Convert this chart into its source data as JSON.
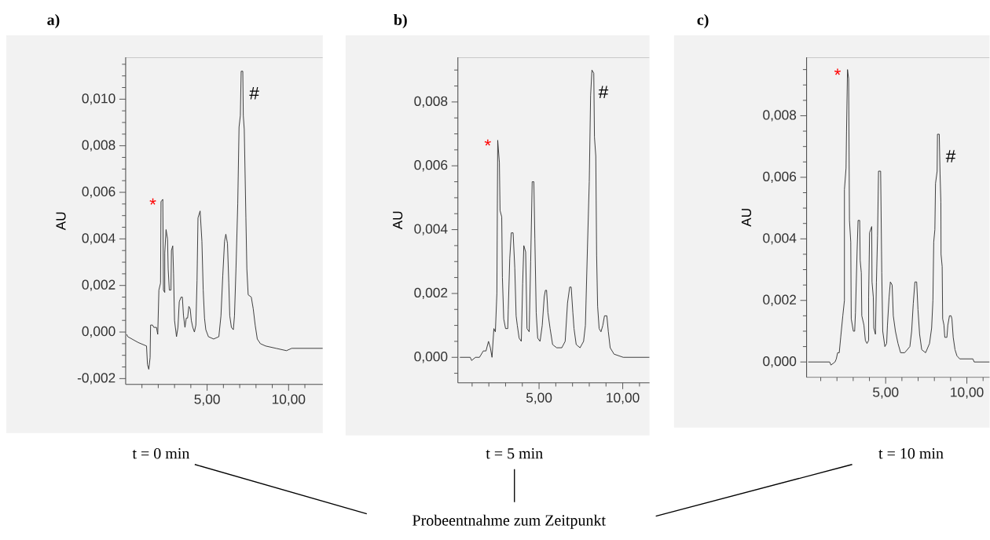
{
  "chart_data": [
    {
      "type": "line",
      "title": "a)",
      "ylabel": "AU",
      "x": [
        0.06,
        0.13,
        0.77,
        1.28,
        1.34,
        1.42,
        1.5,
        1.53,
        1.65,
        1.73,
        1.89,
        1.97,
        2.04,
        2.14,
        2.17,
        2.28,
        2.32,
        2.4,
        2.4,
        2.48,
        2.57,
        2.61,
        2.68,
        2.78,
        2.81,
        2.89,
        2.94,
        3.0,
        3.12,
        3.21,
        3.29,
        3.4,
        3.48,
        3.55,
        3.64,
        3.72,
        3.8,
        3.88,
        3.96,
        4.03,
        4.12,
        4.22,
        4.31,
        4.38,
        4.44,
        4.57,
        4.68,
        4.76,
        4.84,
        4.92,
        5.08,
        5.4,
        5.72,
        5.85,
        5.96,
        6.07,
        6.15,
        6.25,
        6.33,
        6.39,
        6.49,
        6.61,
        6.68,
        6.77,
        6.88,
        6.96,
        7.04,
        7.09,
        7.19,
        7.22,
        7.28,
        7.38,
        7.44,
        7.52,
        7.71,
        7.83,
        7.95,
        8.08,
        8.27,
        8.59,
        9.23,
        9.87,
        10.19,
        12.1
      ],
      "series": [
        {
          "color": "#333333",
          "values": [
            -0.0001,
            -0.0002,
            -0.00045,
            -0.0006,
            -0.0014,
            -0.0016,
            -0.0011,
            0.0003,
            0.0003,
            0.0002,
            0.0002,
            -0.0001,
            0.0018,
            0.0021,
            0.0056,
            0.0057,
            0.0018,
            0.0017,
            0.0034,
            0.0044,
            0.004,
            0.0027,
            0.0018,
            0.0018,
            0.0035,
            0.0037,
            0.0025,
            0.0005,
            -0.0002,
            0.0002,
            0.0013,
            0.0015,
            0.0015,
            0.0007,
            0.0002,
            0.0006,
            0.0006,
            0.0011,
            0.001,
            0.0005,
            0.0002,
            0.0,
            0.0003,
            0.0022,
            0.0049,
            0.0052,
            0.0039,
            0.0018,
            0.0006,
            0.0001,
            -0.0002,
            -0.0003,
            -0.0002,
            0.0007,
            0.0024,
            0.0039,
            0.0042,
            0.0038,
            0.0021,
            0.0007,
            0.0002,
            0.0001,
            0.0007,
            0.0027,
            0.0055,
            0.0088,
            0.0093,
            0.0112,
            0.0112,
            0.0093,
            0.0087,
            0.0049,
            0.0027,
            0.0016,
            0.0015,
            0.001,
            0.0003,
            -0.0003,
            -0.0005,
            -0.0006,
            -0.0007,
            -0.0008,
            -0.0007,
            -0.0007
          ]
        }
      ],
      "xlim": [
        0,
        12.1
      ],
      "ylim": [
        -0.00225,
        0.0118
      ],
      "xticks": [
        {
          "value": 1,
          "label": null
        },
        {
          "value": 2,
          "label": null
        },
        {
          "value": 3,
          "label": null
        },
        {
          "value": 4,
          "label": null
        },
        {
          "value": 5,
          "label": "5,00"
        },
        {
          "value": 6,
          "label": null
        },
        {
          "value": 7,
          "label": null
        },
        {
          "value": 8,
          "label": null
        },
        {
          "value": 9,
          "label": null
        },
        {
          "value": 10,
          "label": "10,00"
        },
        {
          "value": 11,
          "label": null
        }
      ],
      "yticks": [
        {
          "value": -0.002,
          "label": "-0,002"
        },
        {
          "value": -0.0015,
          "label": null
        },
        {
          "value": -0.001,
          "label": null
        },
        {
          "value": -0.0005,
          "label": null
        },
        {
          "value": 0,
          "label": "0,000"
        },
        {
          "value": 0.0005,
          "label": null
        },
        {
          "value": 0.001,
          "label": null
        },
        {
          "value": 0.0015,
          "label": null
        },
        {
          "value": 0.002,
          "label": "0,002"
        },
        {
          "value": 0.0025,
          "label": null
        },
        {
          "value": 0.003,
          "label": null
        },
        {
          "value": 0.0035,
          "label": null
        },
        {
          "value": 0.004,
          "label": "0,004"
        },
        {
          "value": 0.0045,
          "label": null
        },
        {
          "value": 0.005,
          "label": null
        },
        {
          "value": 0.0055,
          "label": null
        },
        {
          "value": 0.006,
          "label": "0,006"
        },
        {
          "value": 0.0065,
          "label": null
        },
        {
          "value": 0.007,
          "label": null
        },
        {
          "value": 0.0075,
          "label": null
        },
        {
          "value": 0.008,
          "label": "0,008"
        },
        {
          "value": 0.0085,
          "label": null
        },
        {
          "value": 0.009,
          "label": null
        },
        {
          "value": 0.0095,
          "label": null
        },
        {
          "value": 0.01,
          "label": "0,010"
        },
        {
          "value": 0.0105,
          "label": null
        },
        {
          "value": 0.011,
          "label": null
        },
        {
          "value": 0.0115,
          "label": null
        }
      ],
      "annotations": [
        {
          "text": "*",
          "x": 2.28,
          "y": 0.0057
        },
        {
          "text": "#",
          "x": 7.19,
          "y": 0.0112
        },
        "t = 0 min"
      ]
    },
    {
      "type": "line",
      "title": "b)",
      "ylabel": "AU",
      "x": [
        0.27,
        0.89,
        0.97,
        1.2,
        1.44,
        1.67,
        1.83,
        1.98,
        2.09,
        2.19,
        2.3,
        2.39,
        2.48,
        2.53,
        2.63,
        2.67,
        2.77,
        2.81,
        2.89,
        3.0,
        3.13,
        3.16,
        3.25,
        3.34,
        3.45,
        3.55,
        3.63,
        3.7,
        3.81,
        3.94,
        4.02,
        4.09,
        4.2,
        4.28,
        4.41,
        4.5,
        4.59,
        4.69,
        4.75,
        4.83,
        4.92,
        5.06,
        5.19,
        5.31,
        5.38,
        5.45,
        5.53,
        5.66,
        5.81,
        6.05,
        6.36,
        6.56,
        6.7,
        6.83,
        6.92,
        7.02,
        7.09,
        7.22,
        7.45,
        7.66,
        7.77,
        7.89,
        8.0,
        8.08,
        8.16,
        8.27,
        8.31,
        8.39,
        8.44,
        8.5,
        8.59,
        8.7,
        8.81,
        8.91,
        9.05,
        9.14,
        9.25,
        9.48,
        10.03,
        10.81,
        11.6
      ],
      "series": [
        {
          "color": "#333333",
          "values": [
            0,
            0,
            -0.0001,
            0,
            0,
            0.0002,
            0.0002,
            0.0005,
            0.0003,
            0,
            0.0009,
            0.0008,
            0.002,
            0.0068,
            0.0061,
            0.0046,
            0.0044,
            0.0025,
            0.0012,
            0.0009,
            0.0009,
            0.0015,
            0.0031,
            0.0039,
            0.0039,
            0.0028,
            0.0013,
            0.001,
            0.0006,
            0.0005,
            0.0023,
            0.0035,
            0.0033,
            0.0009,
            0.0008,
            0.003,
            0.0055,
            0.0055,
            0.0037,
            0.0014,
            0.0006,
            0.0005,
            0.001,
            0.0019,
            0.0021,
            0.0021,
            0.0014,
            0.0009,
            0.0004,
            0.0003,
            0.0003,
            0.0005,
            0.0017,
            0.0022,
            0.0022,
            0.0014,
            0.0009,
            0.0004,
            0.0003,
            0.0005,
            0.001,
            0.0034,
            0.0055,
            0.0082,
            0.009,
            0.0089,
            0.0069,
            0.0063,
            0.0032,
            0.0016,
            0.0009,
            0.0008,
            0.001,
            0.0013,
            0.0013,
            0.0008,
            0.0003,
            0.0001,
            0,
            0,
            0
          ]
        }
      ],
      "xlim": [
        0.15,
        11.6
      ],
      "ylim": [
        -0.0008,
        0.0094
      ],
      "xticks": [
        {
          "value": 1,
          "label": null
        },
        {
          "value": 2,
          "label": null
        },
        {
          "value": 3,
          "label": null
        },
        {
          "value": 4,
          "label": null
        },
        {
          "value": 5,
          "label": "5,00"
        },
        {
          "value": 6,
          "label": null
        },
        {
          "value": 7,
          "label": null
        },
        {
          "value": 8,
          "label": null
        },
        {
          "value": 9,
          "label": null
        },
        {
          "value": 10,
          "label": "10,00"
        },
        {
          "value": 11,
          "label": null
        }
      ],
      "yticks": [
        {
          "value": -0.0005,
          "label": null
        },
        {
          "value": 0,
          "label": "0,000"
        },
        {
          "value": 0.0005,
          "label": null
        },
        {
          "value": 0.001,
          "label": null
        },
        {
          "value": 0.0015,
          "label": null
        },
        {
          "value": 0.002,
          "label": "0,002"
        },
        {
          "value": 0.0025,
          "label": null
        },
        {
          "value": 0.003,
          "label": null
        },
        {
          "value": 0.0035,
          "label": null
        },
        {
          "value": 0.004,
          "label": "0,004"
        },
        {
          "value": 0.0045,
          "label": null
        },
        {
          "value": 0.005,
          "label": null
        },
        {
          "value": 0.0055,
          "label": null
        },
        {
          "value": 0.006,
          "label": "0,006"
        },
        {
          "value": 0.0065,
          "label": null
        },
        {
          "value": 0.007,
          "label": null
        },
        {
          "value": 0.0075,
          "label": null
        },
        {
          "value": 0.008,
          "label": "0,008"
        },
        {
          "value": 0.0085,
          "label": null
        },
        {
          "value": 0.009,
          "label": null
        }
      ],
      "annotations": [
        {
          "text": "*",
          "x": 2.53,
          "y": 0.0068
        },
        {
          "text": "#",
          "x": 8.16,
          "y": 0.009
        },
        "t = 5 min",
        "Probeentnahme zum Zeitpunkt"
      ]
    },
    {
      "type": "line",
      "title": "c)",
      "ylabel": "AU",
      "x": [
        0.23,
        0.34,
        1.55,
        1.63,
        1.88,
        1.96,
        2.04,
        2.14,
        2.23,
        2.36,
        2.46,
        2.46,
        2.56,
        2.59,
        2.65,
        2.72,
        2.77,
        2.85,
        2.88,
        3.01,
        3.09,
        3.14,
        3.24,
        3.3,
        3.4,
        3.43,
        3.5,
        3.53,
        3.66,
        3.75,
        3.85,
        3.95,
        3.95,
        4.01,
        4.14,
        4.16,
        4.24,
        4.27,
        4.37,
        4.43,
        4.5,
        4.56,
        4.69,
        4.76,
        4.82,
        4.95,
        5.06,
        5.11,
        5.21,
        5.29,
        5.4,
        5.47,
        5.6,
        5.76,
        5.92,
        6.17,
        6.49,
        6.6,
        6.7,
        6.8,
        6.91,
        6.99,
        7.09,
        7.22,
        7.46,
        7.7,
        7.83,
        7.91,
        7.96,
        8.03,
        8.07,
        8.17,
        8.19,
        8.3,
        8.35,
        8.4,
        8.41,
        8.48,
        8.51,
        8.59,
        8.64,
        8.77,
        8.83,
        8.93,
        9.03,
        9.08,
        9.16,
        9.27,
        9.39,
        9.56,
        10.37,
        10.45,
        11.4
      ],
      "series": [
        {
          "color": "#333333",
          "values": [
            0,
            0,
            0,
            -0.0001,
            0,
            0.0001,
            0.0003,
            0.0003,
            0.0008,
            0.0015,
            0.002,
            0.0056,
            0.0063,
            0.0075,
            0.0095,
            0.0092,
            0.0046,
            0.0039,
            0.0014,
            0.001,
            0.001,
            0.0016,
            0.0036,
            0.0046,
            0.0046,
            0.0033,
            0.0029,
            0.0015,
            0.0012,
            0.0007,
            0.0006,
            0.0007,
            0.0021,
            0.0042,
            0.0044,
            0.0026,
            0.0021,
            0.0011,
            0.0009,
            0.0026,
            0.0041,
            0.0062,
            0.0062,
            0.0029,
            0.001,
            0.0005,
            0.0006,
            0.0012,
            0.0021,
            0.0026,
            0.0025,
            0.0015,
            0.001,
            0.0006,
            0.0003,
            0.0003,
            0.0005,
            0.001,
            0.0019,
            0.0026,
            0.0026,
            0.0017,
            0.0009,
            0.0004,
            0.0003,
            0.0006,
            0.0011,
            0.002,
            0.0039,
            0.0043,
            0.0058,
            0.0062,
            0.0074,
            0.0074,
            0.0061,
            0.0052,
            0.0035,
            0.0031,
            0.0014,
            0.0012,
            0.0008,
            0.0008,
            0.0012,
            0.0015,
            0.0015,
            0.0014,
            0.0008,
            0.0004,
            0.0002,
            0.0001,
            0.0001,
            0,
            0
          ]
        }
      ],
      "xlim": [
        0.13,
        11.4
      ],
      "ylim": [
        -0.0005,
        0.0099
      ],
      "xticks": [
        {
          "value": 1,
          "label": null
        },
        {
          "value": 2,
          "label": null
        },
        {
          "value": 3,
          "label": null
        },
        {
          "value": 4,
          "label": null
        },
        {
          "value": 5,
          "label": "5,00"
        },
        {
          "value": 6,
          "label": null
        },
        {
          "value": 7,
          "label": null
        },
        {
          "value": 8,
          "label": null
        },
        {
          "value": 9,
          "label": null
        },
        {
          "value": 10,
          "label": "10,00"
        },
        {
          "value": 11,
          "label": null
        }
      ],
      "yticks": [
        {
          "value": 0,
          "label": "0,000"
        },
        {
          "value": 0.0005,
          "label": null
        },
        {
          "value": 0.001,
          "label": null
        },
        {
          "value": 0.0015,
          "label": null
        },
        {
          "value": 0.002,
          "label": "0,002"
        },
        {
          "value": 0.0025,
          "label": null
        },
        {
          "value": 0.003,
          "label": null
        },
        {
          "value": 0.0035,
          "label": null
        },
        {
          "value": 0.004,
          "label": "0,004"
        },
        {
          "value": 0.0045,
          "label": null
        },
        {
          "value": 0.005,
          "label": null
        },
        {
          "value": 0.0055,
          "label": null
        },
        {
          "value": 0.006,
          "label": "0,006"
        },
        {
          "value": 0.0065,
          "label": null
        },
        {
          "value": 0.007,
          "label": null
        },
        {
          "value": 0.0075,
          "label": null
        },
        {
          "value": 0.008,
          "label": "0,008"
        },
        {
          "value": 0.0085,
          "label": null
        },
        {
          "value": 0.009,
          "label": null
        },
        {
          "value": 0.0095,
          "label": null
        }
      ],
      "annotations": [
        {
          "text": "*",
          "x": 2.65,
          "y": 0.0095
        },
        {
          "text": "#",
          "x": 8.3,
          "y": 0.0074
        },
        "t = 10 min"
      ]
    }
  ]
}
